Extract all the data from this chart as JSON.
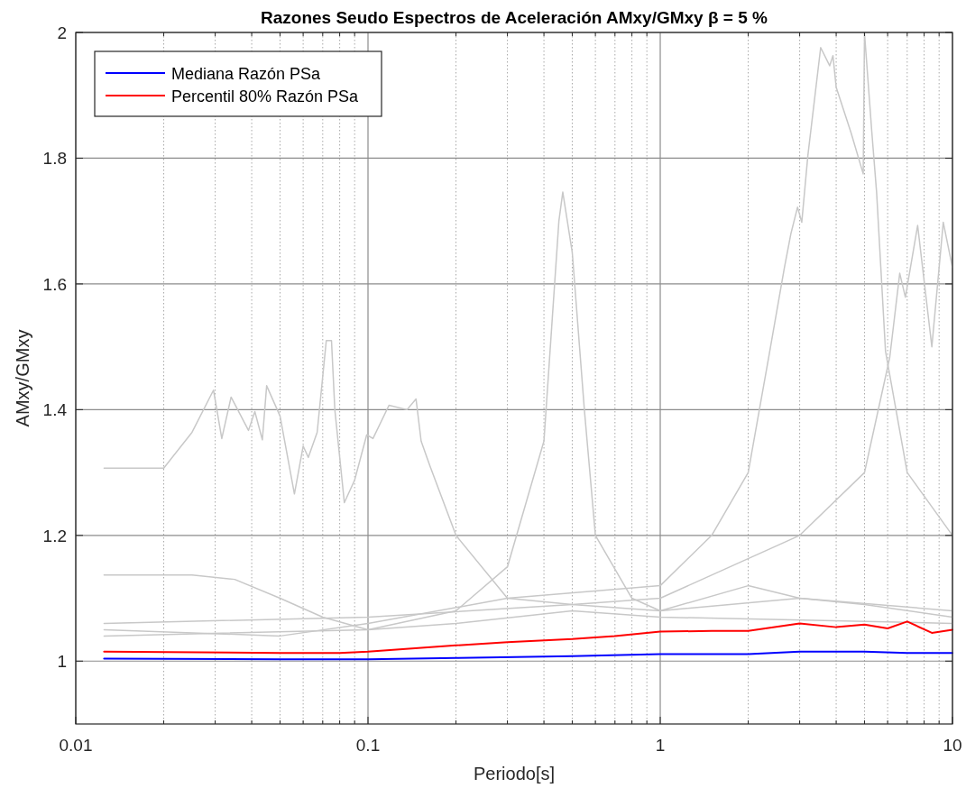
{
  "chart_data": {
    "type": "line",
    "title": "Razones Seudo Espectros de Aceleración AMxy/GMxy  β = 5 %",
    "xlabel": "Periodo[s]",
    "ylabel": "AMxy/GMxy",
    "log": "x",
    "xlim": [
      0.01,
      10
    ],
    "xticks": [
      0.01,
      0.1,
      1,
      10
    ],
    "ylim": [
      0.9,
      2
    ],
    "yticks": [
      1,
      1.2,
      1.4,
      1.6,
      1.8,
      2
    ],
    "grid": true,
    "legend": "top left",
    "series": [
      {
        "color": "#c8c8c8",
        "x": [
          0.0125,
          0.02,
          0.025,
          0.0296,
          0.0316,
          0.034,
          0.039,
          0.041,
          0.0435,
          0.045,
          0.05,
          0.056,
          0.06,
          0.0625,
          0.067,
          0.072,
          0.075,
          0.077,
          0.083,
          0.09,
          0.099,
          0.104,
          0.118,
          0.136,
          0.146,
          0.152,
          0.163,
          0.2,
          0.3,
          0.5,
          1,
          2,
          3,
          5,
          10
        ],
        "values": [
          1.307,
          1.307,
          1.364,
          1.431,
          1.354,
          1.42,
          1.367,
          1.397,
          1.352,
          1.438,
          1.39,
          1.266,
          1.342,
          1.324,
          1.364,
          1.51,
          1.51,
          1.4,
          1.252,
          1.288,
          1.36,
          1.354,
          1.407,
          1.4,
          1.417,
          1.35,
          1.31,
          1.2,
          1.1,
          1.09,
          1.08,
          1.12,
          1.1,
          1.09,
          1.07
        ]
      },
      {
        "color": "#c8c8c8",
        "x": [
          0.0125,
          0.05,
          0.1,
          0.3,
          1,
          1.5,
          2,
          2.35,
          2.66,
          2.8,
          2.95,
          3.05,
          3.2,
          3.54,
          3.8,
          3.9,
          4,
          4.5,
          4.95,
          5,
          5.3,
          5.5,
          5.9,
          7,
          10
        ],
        "values": [
          1.05,
          1.04,
          1.06,
          1.1,
          1.12,
          1.2,
          1.3,
          1.483,
          1.626,
          1.68,
          1.722,
          1.698,
          1.804,
          1.976,
          1.947,
          1.963,
          1.913,
          1.84,
          1.775,
          1.999,
          1.84,
          1.746,
          1.493,
          1.3,
          1.2
        ]
      },
      {
        "color": "#c8c8c8",
        "x": [
          0.0125,
          0.1,
          0.2,
          0.3,
          0.4,
          0.45,
          0.464,
          0.5,
          0.55,
          0.6,
          0.8,
          1,
          3,
          10
        ],
        "values": [
          1.04,
          1.05,
          1.08,
          1.15,
          1.35,
          1.7,
          1.746,
          1.65,
          1.4,
          1.2,
          1.1,
          1.08,
          1.1,
          1.08
        ]
      },
      {
        "color": "#c8c8c8",
        "x": [
          0.0125,
          0.1,
          0.5,
          1,
          3,
          5,
          6.1,
          6.6,
          6.9,
          7.6,
          8.5,
          9.3,
          10
        ],
        "values": [
          1.06,
          1.07,
          1.09,
          1.1,
          1.2,
          1.3,
          1.483,
          1.617,
          1.579,
          1.693,
          1.5,
          1.698,
          1.626
        ]
      },
      {
        "color": "#c8c8c8",
        "x": [
          0.0125,
          0.025,
          0.035,
          0.05,
          0.07,
          0.1,
          0.2,
          0.5,
          1,
          10
        ],
        "values": [
          1.137,
          1.137,
          1.13,
          1.1,
          1.07,
          1.05,
          1.06,
          1.08,
          1.07,
          1.06
        ]
      },
      {
        "name": "Mediana Razón PSa",
        "color": "#0000ff",
        "x": [
          0.0125,
          0.05,
          0.1,
          0.2,
          0.5,
          1,
          2,
          3,
          5,
          7,
          10
        ],
        "values": [
          1.004,
          1.003,
          1.003,
          1.005,
          1.008,
          1.011,
          1.011,
          1.015,
          1.015,
          1.013,
          1.013
        ]
      },
      {
        "name": "Percentil 80% Razón PSa",
        "color": "#ff0000",
        "x": [
          0.0125,
          0.05,
          0.08,
          0.1,
          0.2,
          0.3,
          0.5,
          0.7,
          1,
          1.5,
          2,
          3,
          4,
          5,
          6,
          7,
          8.5,
          10
        ],
        "values": [
          1.015,
          1.013,
          1.013,
          1.015,
          1.025,
          1.03,
          1.035,
          1.04,
          1.047,
          1.048,
          1.048,
          1.06,
          1.054,
          1.058,
          1.052,
          1.063,
          1.045,
          1.05
        ]
      }
    ]
  }
}
